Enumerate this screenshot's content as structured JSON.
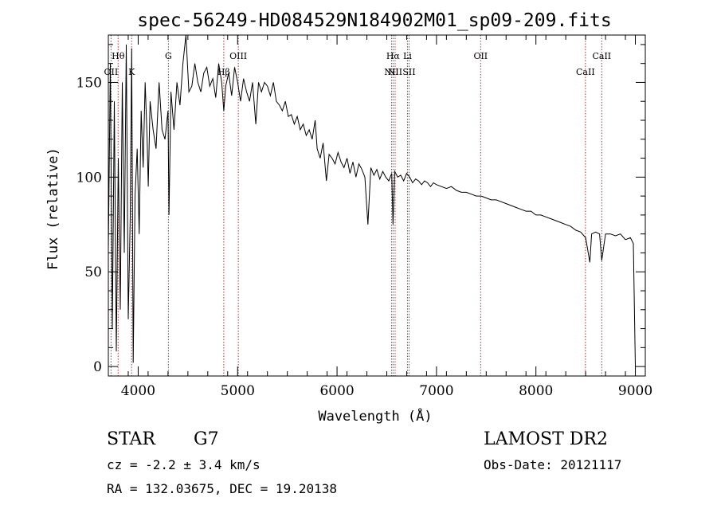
{
  "chart_data": {
    "type": "line",
    "title": "spec-56249-HD084529N184902M01_sp09-209.fits",
    "xlabel": "Wavelength (Å)",
    "ylabel": "Flux (relative)",
    "xlim": [
      3700,
      9100
    ],
    "ylim": [
      -5,
      175
    ],
    "x_ticks": [
      4000,
      5000,
      6000,
      7000,
      8000,
      9000
    ],
    "y_ticks": [
      0,
      50,
      100,
      150
    ],
    "series": [
      {
        "values_note": "",
        "x": [
          3700,
          3720,
          3740,
          3760,
          3780,
          3800,
          3820,
          3840,
          3860,
          3880,
          3900,
          3920,
          3935,
          3950,
          3968,
          3990,
          4010,
          4030,
          4050,
          4070,
          4090,
          4101,
          4120,
          4150,
          4180,
          4210,
          4240,
          4270,
          4300,
          4310,
          4330,
          4360,
          4390,
          4420,
          4450,
          4480,
          4510,
          4540,
          4570,
          4600,
          4630,
          4660,
          4690,
          4720,
          4750,
          4780,
          4810,
          4840,
          4861,
          4880,
          4910,
          4940,
          4970,
          5000,
          5030,
          5060,
          5090,
          5120,
          5150,
          5183,
          5210,
          5240,
          5270,
          5300,
          5330,
          5360,
          5390,
          5420,
          5450,
          5480,
          5510,
          5540,
          5570,
          5600,
          5630,
          5660,
          5690,
          5720,
          5750,
          5780,
          5800,
          5830,
          5860,
          5893,
          5920,
          5950,
          5980,
          6010,
          6040,
          6070,
          6100,
          6130,
          6160,
          6190,
          6220,
          6250,
          6280,
          6310,
          6340,
          6370,
          6400,
          6430,
          6460,
          6490,
          6520,
          6550,
          6563,
          6580,
          6610,
          6640,
          6670,
          6700,
          6730,
          6760,
          6790,
          6820,
          6850,
          6880,
          6910,
          6940,
          6970,
          7000,
          7050,
          7100,
          7150,
          7200,
          7250,
          7300,
          7350,
          7400,
          7450,
          7500,
          7550,
          7600,
          7650,
          7700,
          7750,
          7800,
          7850,
          7900,
          7950,
          8000,
          8050,
          8100,
          8150,
          8200,
          8250,
          8300,
          8350,
          8400,
          8450,
          8500,
          8542,
          8560,
          8600,
          8640,
          8662,
          8700,
          8750,
          8800,
          8850,
          8900,
          8950,
          8980,
          9000
        ],
        "y": [
          62,
          160,
          20,
          140,
          8,
          110,
          30,
          150,
          60,
          170,
          25,
          80,
          168,
          2,
          90,
          115,
          70,
          135,
          105,
          150,
          120,
          95,
          140,
          125,
          115,
          150,
          125,
          120,
          135,
          80,
          145,
          125,
          150,
          138,
          160,
          175,
          145,
          148,
          160,
          150,
          145,
          155,
          158,
          148,
          152,
          142,
          160,
          150,
          135,
          148,
          155,
          143,
          158,
          150,
          140,
          152,
          145,
          140,
          150,
          128,
          150,
          145,
          150,
          148,
          143,
          150,
          140,
          138,
          135,
          140,
          132,
          133,
          128,
          132,
          125,
          128,
          122,
          125,
          120,
          130,
          115,
          110,
          118,
          98,
          112,
          110,
          107,
          113,
          108,
          105,
          110,
          102,
          108,
          100,
          107,
          104,
          100,
          75,
          105,
          101,
          104,
          99,
          103,
          100,
          98,
          102,
          75,
          103,
          100,
          101,
          98,
          102,
          100,
          97,
          99,
          98,
          96,
          98,
          97,
          95,
          97,
          96,
          95,
          94,
          95,
          93,
          92,
          92,
          91,
          90,
          90,
          89,
          88,
          88,
          87,
          86,
          85,
          84,
          83,
          82,
          82,
          80,
          80,
          79,
          78,
          77,
          76,
          75,
          74,
          72,
          71,
          68,
          55,
          70,
          71,
          70,
          56,
          70,
          70,
          69,
          70,
          67,
          68,
          65,
          0
        ]
      }
    ],
    "lines": [
      {
        "x": 3727,
        "labels": [
          "OII"
        ]
      },
      {
        "x": 3798,
        "labels": [
          "Hθ"
        ]
      },
      {
        "x": 3934,
        "labels": [
          "K"
        ]
      },
      {
        "x": 4304,
        "labels": [
          "G"
        ]
      },
      {
        "x": 4861,
        "labels": [
          "Hβ"
        ]
      },
      {
        "x": 5007,
        "labels": [
          "OIII"
        ]
      },
      {
        "x": 6548,
        "labels": [
          "NII"
        ]
      },
      {
        "x": 6563,
        "labels": [
          "Hα"
        ]
      },
      {
        "x": 6584,
        "labels": [
          "NII"
        ]
      },
      {
        "x": 6708,
        "labels": [
          "Li"
        ]
      },
      {
        "x": 6724,
        "labels": [
          "SII"
        ]
      },
      {
        "x": 7444,
        "labels": [
          "OII"
        ]
      },
      {
        "x": 8498,
        "labels": [
          "CaII"
        ]
      },
      {
        "x": 8662,
        "labels": [
          "CaII"
        ]
      }
    ],
    "line_color": "#b03030",
    "grid": false
  },
  "info": {
    "class_type": "STAR",
    "subclass": "G7",
    "survey": "LAMOST DR2",
    "cz_text": "cz = -2.2 ± 3.4 km/s",
    "obs_date": "Obs-Date: 20121117",
    "coords": "RA = 132.03675, DEC =  19.20138"
  }
}
